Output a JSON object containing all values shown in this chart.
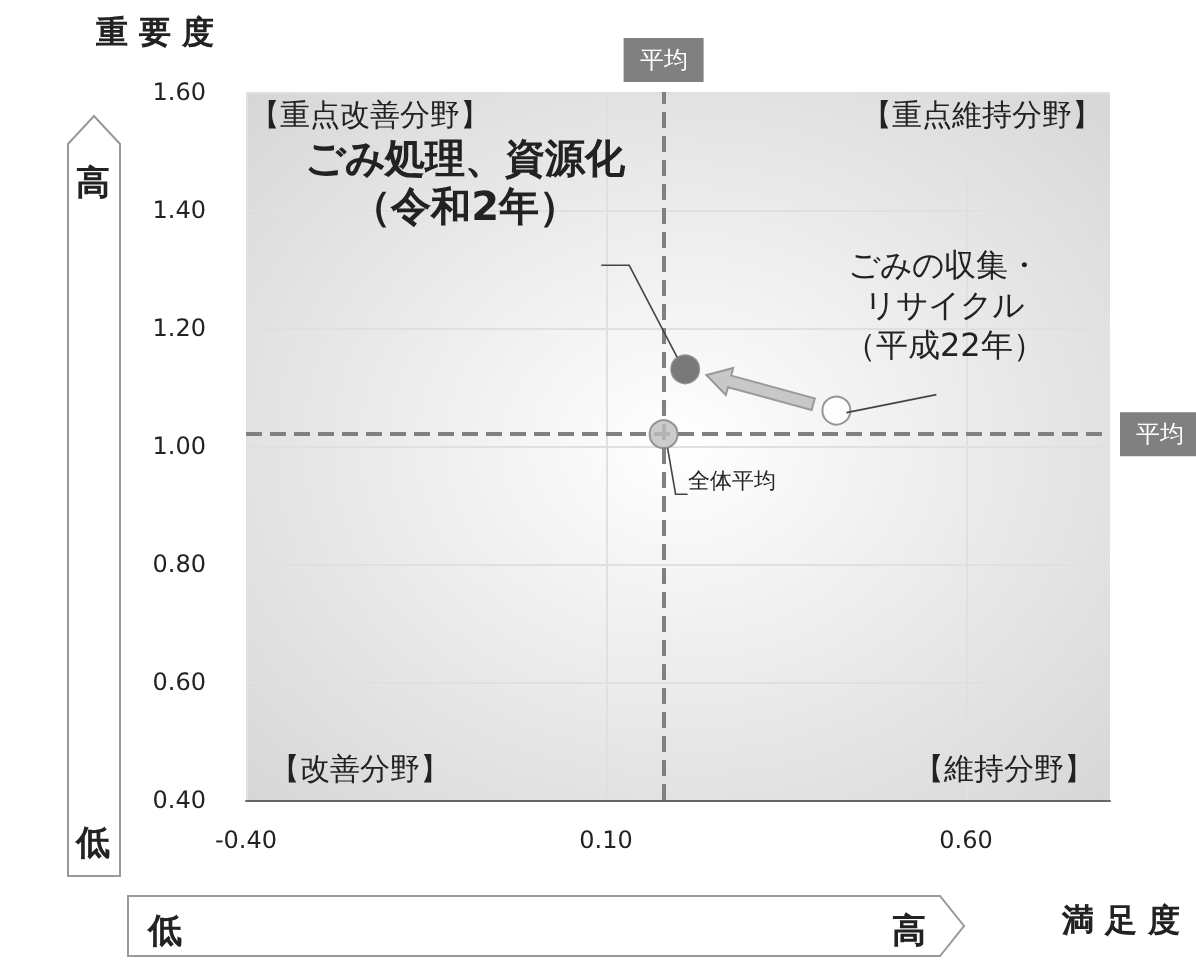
{
  "chart_data": {
    "type": "scatter",
    "xlabel": "満 足 度",
    "ylabel": "重 要 度",
    "xlim": [
      -0.4,
      0.8
    ],
    "ylim": [
      0.4,
      1.6
    ],
    "xticks": [
      {
        "value": -0.4,
        "label": "-0.40"
      },
      {
        "value": 0.1,
        "label": "0.10"
      },
      {
        "value": 0.6,
        "label": "0.60"
      }
    ],
    "yticks": [
      {
        "value": 0.4,
        "label": "0.40"
      },
      {
        "value": 0.6,
        "label": "0.60"
      },
      {
        "value": 0.8,
        "label": "0.80"
      },
      {
        "value": 1.0,
        "label": "1.00"
      },
      {
        "value": 1.2,
        "label": "1.20"
      },
      {
        "value": 1.4,
        "label": "1.40"
      },
      {
        "value": 1.6,
        "label": "1.60"
      }
    ],
    "grid": true,
    "marker": "circle",
    "series": [
      {
        "name": "ごみ処理、資源化（令和2年）",
        "color": "#595959",
        "x": [
          0.21
        ],
        "values": [
          1.13
        ]
      },
      {
        "name": "ごみの収集・リサイクル（平成22年）",
        "color": "#ffffff",
        "x": [
          0.42
        ],
        "values": [
          1.06
        ]
      },
      {
        "name": "全体平均",
        "color": "#bfbfbf",
        "x": [
          0.18
        ],
        "values": [
          1.02
        ]
      }
    ],
    "ref_lines": [
      {
        "axis": "x",
        "value": 0.18,
        "label": "平均",
        "color": "#808080",
        "line_style": "dashed"
      },
      {
        "axis": "y",
        "value": 1.02,
        "label": "平均",
        "color": "#808080",
        "line_style": "dashed"
      }
    ],
    "annotations": [
      "【重点改善分野】",
      "【重点維持分野】",
      "【改善分野】",
      "【維持分野】",
      "高",
      "低",
      "低",
      "高"
    ]
  }
}
